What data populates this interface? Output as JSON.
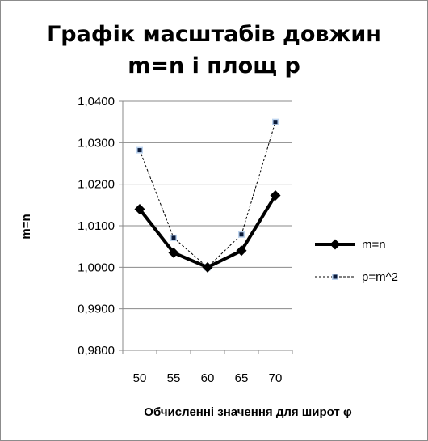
{
  "chart_data": {
    "type": "line",
    "title_lines": [
      "Графік масштабів довжин",
      "m=n і площ p"
    ],
    "xlabel": "Обчисленні значення для широт φ",
    "ylabel": "m=n",
    "categories": [
      "50",
      "55",
      "60",
      "65",
      "70"
    ],
    "ylim": [
      0.98,
      1.04
    ],
    "yticks": [
      "1,0400",
      "1,0300",
      "1,0200",
      "1,0100",
      "1,0000",
      "0,9900",
      "0,9800"
    ],
    "ytick_values": [
      1.04,
      1.03,
      1.02,
      1.01,
      1.0,
      0.99,
      0.98
    ],
    "grid": true,
    "legend_position": "right",
    "series": [
      {
        "name": "m=n",
        "values": [
          1.014,
          1.0035,
          1.0,
          1.004,
          1.0173
        ],
        "color": "#000000",
        "style": "solid-thick",
        "marker": "diamond"
      },
      {
        "name": "p=m^2",
        "values": [
          1.0282,
          1.0071,
          1.0,
          1.0079,
          1.035
        ],
        "color": "#000000",
        "style": "dashed-thin",
        "marker": "square"
      }
    ]
  }
}
